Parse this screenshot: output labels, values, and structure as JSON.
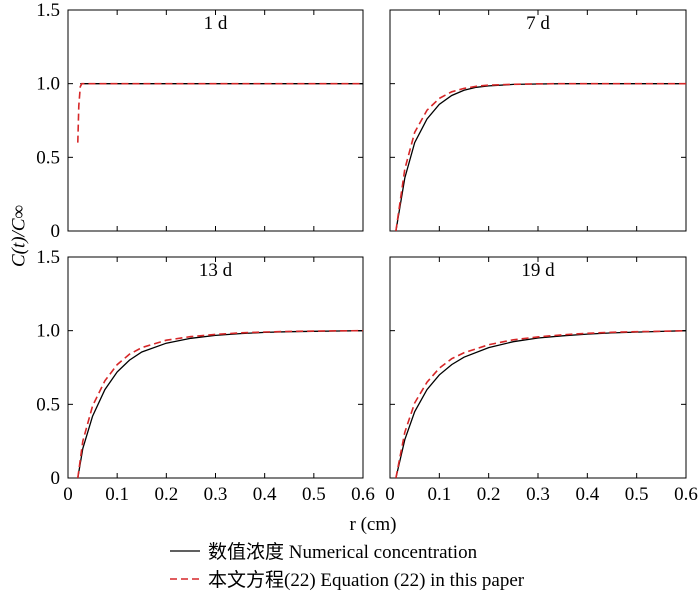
{
  "chart_data": {
    "type": "line",
    "layout": "2x2 grid, shared axes",
    "xlabel": "r (cm)",
    "ylabel": "C(t)/C∞",
    "xlim": [
      0,
      0.6
    ],
    "ylim": [
      0,
      1.5
    ],
    "xticks": [
      "0",
      "0.1",
      "0.2",
      "0.3",
      "0.4",
      "0.5",
      "0.6"
    ],
    "yticks": [
      "0",
      "0.5",
      "1.0",
      "1.5"
    ],
    "grid": false,
    "legend_position": "bottom-center",
    "series_styles": {
      "numerical": {
        "color": "#000000",
        "dash": "solid"
      },
      "equation": {
        "color": "#d62728",
        "dash": "dashed"
      }
    },
    "legend": [
      {
        "series": "numerical",
        "label": "数值浓度 Numerical concentration"
      },
      {
        "series": "equation",
        "label": "本文方程(22) Equation (22) in this paper"
      }
    ],
    "panels": [
      {
        "title": "1 d",
        "numerical": {
          "x": [
            0.025,
            0.028,
            0.6
          ],
          "y": [
            1.0,
            1.0,
            1.0
          ]
        },
        "equation": {
          "x": [
            0.02,
            0.022,
            0.025,
            0.028,
            0.6
          ],
          "y": [
            0.6,
            0.85,
            0.98,
            1.0,
            1.0
          ]
        }
      },
      {
        "title": "7 d",
        "numerical": {
          "x": [
            0.012,
            0.03,
            0.05,
            0.075,
            0.1,
            0.125,
            0.15,
            0.175,
            0.2,
            0.25,
            0.3,
            0.35,
            0.4,
            0.5,
            0.6
          ],
          "y": [
            0,
            0.36,
            0.6,
            0.76,
            0.86,
            0.92,
            0.955,
            0.975,
            0.985,
            0.995,
            0.998,
            1.0,
            1.0,
            1.0,
            1.0
          ]
        },
        "equation": {
          "x": [
            0.012,
            0.03,
            0.05,
            0.075,
            0.1,
            0.125,
            0.15,
            0.175,
            0.2,
            0.25,
            0.3,
            0.35,
            0.4,
            0.5,
            0.6
          ],
          "y": [
            0,
            0.42,
            0.67,
            0.82,
            0.9,
            0.945,
            0.968,
            0.982,
            0.99,
            0.996,
            0.999,
            1.0,
            1.0,
            1.0,
            1.0
          ]
        }
      },
      {
        "title": "13 d",
        "numerical": {
          "x": [
            0.02,
            0.03,
            0.05,
            0.075,
            0.1,
            0.125,
            0.15,
            0.2,
            0.25,
            0.3,
            0.35,
            0.4,
            0.45,
            0.5,
            0.55,
            0.6
          ],
          "y": [
            0,
            0.2,
            0.42,
            0.6,
            0.72,
            0.8,
            0.855,
            0.915,
            0.948,
            0.968,
            0.98,
            0.988,
            0.993,
            0.996,
            0.998,
            1.0
          ]
        },
        "equation": {
          "x": [
            0.02,
            0.03,
            0.05,
            0.075,
            0.1,
            0.125,
            0.15,
            0.2,
            0.25,
            0.3,
            0.35,
            0.4,
            0.45,
            0.5,
            0.55,
            0.6
          ],
          "y": [
            0,
            0.25,
            0.49,
            0.66,
            0.77,
            0.84,
            0.885,
            0.935,
            0.96,
            0.975,
            0.985,
            0.991,
            0.995,
            0.997,
            0.999,
            1.0
          ]
        }
      },
      {
        "title": "19 d",
        "numerical": {
          "x": [
            0.012,
            0.03,
            0.05,
            0.075,
            0.1,
            0.125,
            0.15,
            0.2,
            0.25,
            0.3,
            0.35,
            0.4,
            0.45,
            0.5,
            0.55,
            0.6
          ],
          "y": [
            0,
            0.26,
            0.45,
            0.6,
            0.7,
            0.77,
            0.82,
            0.885,
            0.925,
            0.95,
            0.965,
            0.977,
            0.985,
            0.99,
            0.995,
            1.0
          ]
        },
        "equation": {
          "x": [
            0.012,
            0.03,
            0.05,
            0.075,
            0.1,
            0.125,
            0.15,
            0.2,
            0.25,
            0.3,
            0.35,
            0.4,
            0.45,
            0.5,
            0.55,
            0.6
          ],
          "y": [
            0,
            0.31,
            0.51,
            0.65,
            0.745,
            0.81,
            0.85,
            0.905,
            0.938,
            0.958,
            0.972,
            0.982,
            0.989,
            0.993,
            0.996,
            1.0
          ]
        }
      }
    ]
  }
}
